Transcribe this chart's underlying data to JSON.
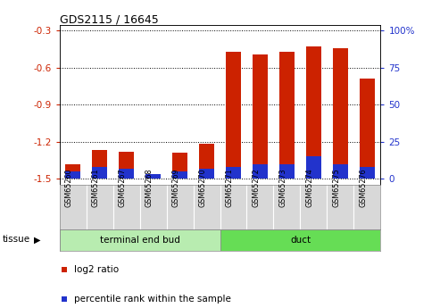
{
  "title": "GDS2115 / 16645",
  "samples": [
    "GSM65260",
    "GSM65261",
    "GSM65267",
    "GSM65268",
    "GSM65269",
    "GSM65270",
    "GSM65271",
    "GSM65272",
    "GSM65273",
    "GSM65274",
    "GSM65275",
    "GSM65276"
  ],
  "log2_ratio": [
    -1.38,
    -1.27,
    -1.28,
    -1.47,
    -1.29,
    -1.22,
    -0.47,
    -0.49,
    -0.47,
    -0.43,
    -0.44,
    -0.69
  ],
  "percentile": [
    5,
    8,
    7,
    3,
    5,
    7,
    8,
    10,
    10,
    15,
    10,
    8
  ],
  "ylim_left": [
    -1.55,
    -0.25
  ],
  "yticks_left": [
    -1.5,
    -1.2,
    -0.9,
    -0.6,
    -0.3
  ],
  "ylim_right": [
    0,
    100
  ],
  "yticks_right": [
    0,
    25,
    50,
    75,
    100
  ],
  "bar_color_red": "#cc2200",
  "bar_color_blue": "#2233cc",
  "bg_color": "#ffffff",
  "plot_bg": "#ffffff",
  "grid_color": "#000000",
  "tick_color_left": "#cc2200",
  "tick_color_right": "#2233cc",
  "bar_width": 0.55,
  "tissue_label": "tissue",
  "legend_red": "log2 ratio",
  "legend_blue": "percentile rank within the sample",
  "teb_color": "#b8ecb0",
  "duct_color": "#66dd55",
  "sample_box_color": "#d8d8d8"
}
